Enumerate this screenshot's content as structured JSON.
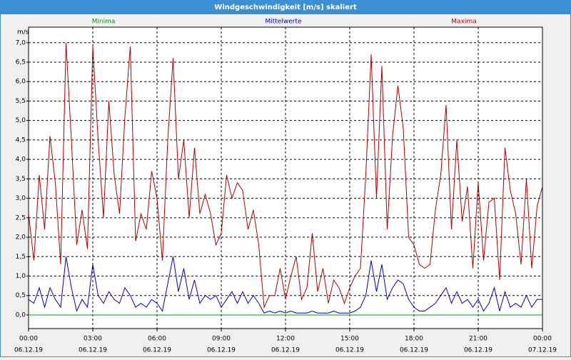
{
  "chart_data": {
    "type": "line",
    "title": "Windgeschwindigkeit [m/s] skaliert",
    "y_label": "m/s",
    "grid": true,
    "x": [
      0,
      0.25,
      0.5,
      0.75,
      1,
      1.25,
      1.5,
      1.75,
      2,
      2.25,
      2.5,
      2.75,
      3,
      3.25,
      3.5,
      3.75,
      4,
      4.25,
      4.5,
      4.75,
      5,
      5.25,
      5.5,
      5.75,
      6,
      6.25,
      6.5,
      6.75,
      7,
      7.25,
      7.5,
      7.75,
      8,
      8.25,
      8.5,
      8.75,
      9,
      9.25,
      9.5,
      9.75,
      10,
      10.25,
      10.5,
      10.75,
      11,
      11.25,
      11.5,
      11.75,
      12,
      12.25,
      12.5,
      12.75,
      13,
      13.25,
      13.5,
      13.75,
      14,
      14.25,
      14.5,
      14.75,
      15,
      15.25,
      15.5,
      15.75,
      16,
      16.25,
      16.5,
      16.75,
      17,
      17.25,
      17.5,
      17.75,
      18,
      18.25,
      18.5,
      18.75,
      19,
      19.25,
      19.5,
      19.75,
      20,
      20.25,
      20.5,
      20.75,
      21,
      21.25,
      21.5,
      21.75,
      22,
      22.25,
      22.5,
      22.75,
      23,
      23.25,
      23.5,
      23.75,
      24
    ],
    "series": [
      {
        "name": "Minima",
        "color": "#00a000",
        "values": [
          0,
          0,
          0,
          0,
          0,
          0,
          0,
          0,
          0,
          0,
          0,
          0,
          0,
          0,
          0,
          0,
          0,
          0,
          0,
          0,
          0,
          0,
          0,
          0,
          0,
          0,
          0,
          0,
          0,
          0,
          0,
          0,
          0,
          0,
          0,
          0,
          0,
          0,
          0,
          0,
          0,
          0,
          0,
          0,
          0,
          0,
          0,
          0,
          0,
          0,
          0,
          0,
          0,
          0,
          0,
          0,
          0,
          0,
          0,
          0,
          0,
          0,
          0,
          0,
          0,
          0,
          0,
          0,
          0,
          0,
          0,
          0,
          0,
          0,
          0,
          0,
          0,
          0,
          0,
          0,
          0,
          0,
          0,
          0,
          0,
          0,
          0,
          0,
          0,
          0,
          0,
          0,
          0,
          0,
          0,
          0,
          0
        ]
      },
      {
        "name": "Mittelwerte",
        "color": "#0000c0",
        "values": [
          0.4,
          0.3,
          0.7,
          0.2,
          0.7,
          0.4,
          0.2,
          1.5,
          0.7,
          0.1,
          0.4,
          0.2,
          1.3,
          0.5,
          0.3,
          0.6,
          0.4,
          0.3,
          0.7,
          0.5,
          0.2,
          0.3,
          0.2,
          0.4,
          0.3,
          0.1,
          0.8,
          1.5,
          0.6,
          1.2,
          0.4,
          0.9,
          0.3,
          0.5,
          0.4,
          0.5,
          0.2,
          0.4,
          0.6,
          0.3,
          0.6,
          0.3,
          0.5,
          0.3,
          0.05,
          0.1,
          0.05,
          0.1,
          0.05,
          0.1,
          0.05,
          0.05,
          0.05,
          0.1,
          0.05,
          0.05,
          0.05,
          0.1,
          0.05,
          0.05,
          0.05,
          0.1,
          0.2,
          0.5,
          1.4,
          0.6,
          1.3,
          0.4,
          0.7,
          0.9,
          0.8,
          0.4,
          0.2,
          0.1,
          0.1,
          0.2,
          0.3,
          0.5,
          0.7,
          0.3,
          0.6,
          0.3,
          0.4,
          0.2,
          0.4,
          0.1,
          0.3,
          0.7,
          0.1,
          0.6,
          0.2,
          0.3,
          0.2,
          0.5,
          0.2,
          0.4,
          0.4
        ]
      },
      {
        "name": "Maxima",
        "color": "#b00000",
        "values": [
          2.6,
          1.4,
          3.6,
          2.2,
          4.6,
          3.4,
          1.3,
          7.0,
          4.5,
          1.8,
          2.7,
          1.7,
          6.9,
          4.5,
          2.5,
          5.5,
          3.6,
          2.6,
          5.1,
          6.9,
          1.9,
          2.6,
          2.2,
          3.7,
          3.0,
          1.4,
          4.5,
          6.6,
          3.5,
          4.5,
          2.5,
          4.3,
          2.6,
          3.1,
          2.6,
          1.8,
          2.1,
          3.6,
          3.0,
          3.4,
          3.2,
          2.2,
          2.7,
          1.8,
          0.2,
          0.5,
          0.5,
          1.2,
          0.4,
          1.0,
          1.5,
          0.4,
          0.7,
          2.1,
          0.6,
          1.2,
          0.3,
          0.9,
          0.7,
          0.3,
          0.7,
          1.0,
          1.2,
          3.6,
          6.7,
          3.0,
          6.4,
          2.2,
          4.6,
          5.9,
          4.8,
          2.0,
          1.8,
          1.3,
          1.2,
          1.3,
          2.7,
          3.6,
          5.4,
          2.2,
          4.5,
          2.4,
          3.3,
          1.2,
          3.4,
          1.4,
          2.9,
          3.0,
          0.9,
          4.3,
          3.2,
          2.6,
          1.3,
          3.5,
          1.2,
          2.8,
          3.3
        ]
      }
    ],
    "xlim": [
      0,
      24
    ],
    "xticks": [
      {
        "value": 0,
        "label": "00:00",
        "date": "06.12.19"
      },
      {
        "value": 3,
        "label": "03:00",
        "date": "06.12.19"
      },
      {
        "value": 6,
        "label": "06:00",
        "date": "06.12.19"
      },
      {
        "value": 9,
        "label": "09:00",
        "date": "06.12.19"
      },
      {
        "value": 12,
        "label": "12:00",
        "date": "06.12.19"
      },
      {
        "value": 15,
        "label": "15:00",
        "date": "06.12.19"
      },
      {
        "value": 18,
        "label": "18:00",
        "date": "06.12.19"
      },
      {
        "value": 21,
        "label": "21:00",
        "date": "06.12.19"
      },
      {
        "value": 24,
        "label": "00:00",
        "date": "07.12.19"
      }
    ],
    "ylim": [
      -0.35,
      7.4
    ],
    "yticks": [
      {
        "value": 0,
        "label": "0,0"
      },
      {
        "value": 0.5,
        "label": "0,5"
      },
      {
        "value": 1,
        "label": "1,0"
      },
      {
        "value": 1.5,
        "label": "1,5"
      },
      {
        "value": 2,
        "label": "2,0"
      },
      {
        "value": 2.5,
        "label": "2,5"
      },
      {
        "value": 3,
        "label": "3,0"
      },
      {
        "value": 3.5,
        "label": "3,5"
      },
      {
        "value": 4,
        "label": "4,0"
      },
      {
        "value": 4.5,
        "label": "4,5"
      },
      {
        "value": 5,
        "label": "5,0"
      },
      {
        "value": 5.5,
        "label": "5,5"
      },
      {
        "value": 6,
        "label": "6,0"
      },
      {
        "value": 6.5,
        "label": "6,5"
      },
      {
        "value": 7,
        "label": "7,0"
      }
    ]
  }
}
